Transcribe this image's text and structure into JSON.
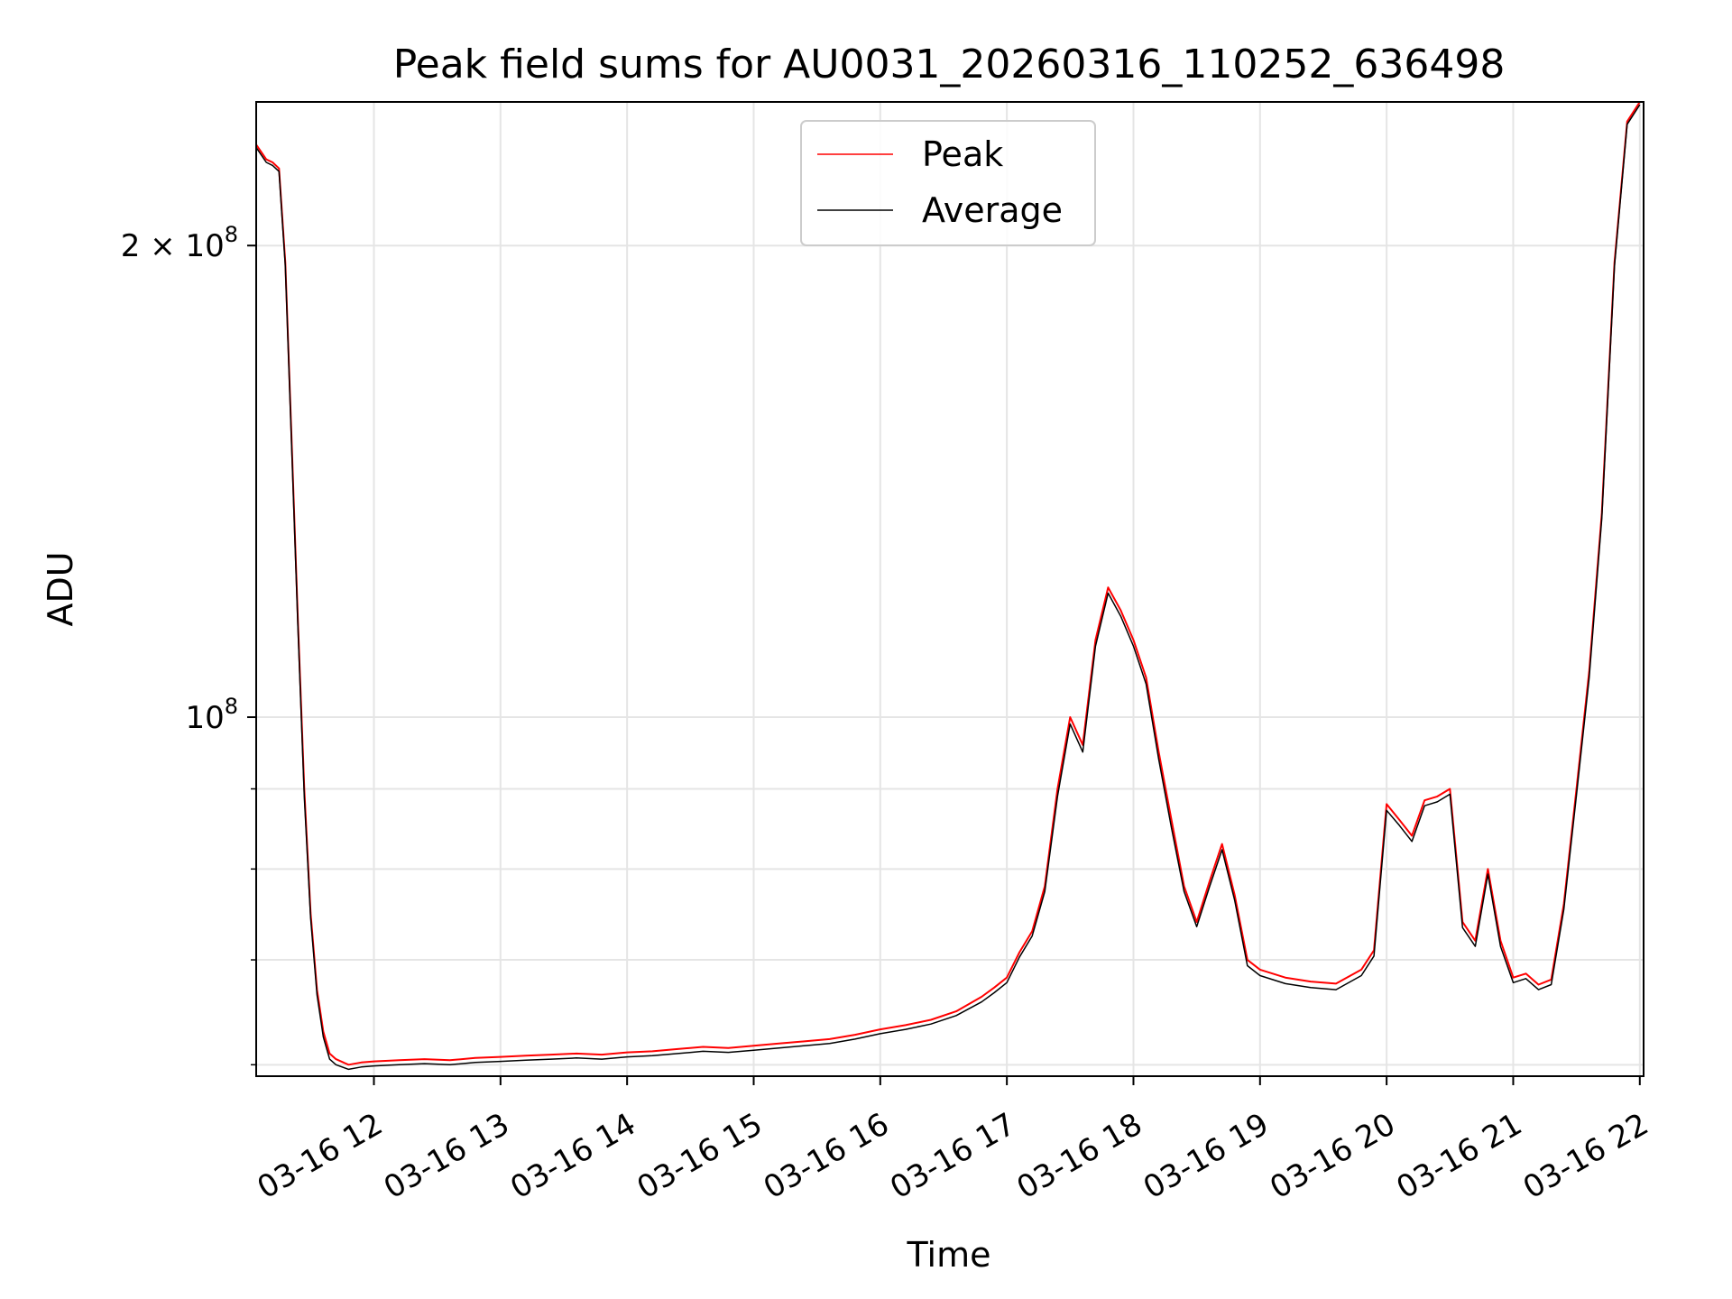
{
  "chart_data": {
    "type": "line",
    "title": "Peak field sums for AU0031_20260316_110252_636498",
    "xlabel": "Time",
    "ylabel": "ADU",
    "yscale": "log",
    "xlim": [
      11.07,
      22.03
    ],
    "ylim": [
      59000000,
      247000000
    ],
    "grid": true,
    "legend": {
      "position": "top-center",
      "entries": [
        "Peak",
        "Average"
      ]
    },
    "x_ticks": [
      {
        "value": 12,
        "label": "03-16 12"
      },
      {
        "value": 13,
        "label": "03-16 13"
      },
      {
        "value": 14,
        "label": "03-16 14"
      },
      {
        "value": 15,
        "label": "03-16 15"
      },
      {
        "value": 16,
        "label": "03-16 16"
      },
      {
        "value": 17,
        "label": "03-16 17"
      },
      {
        "value": 18,
        "label": "03-16 18"
      },
      {
        "value": 19,
        "label": "03-16 19"
      },
      {
        "value": 20,
        "label": "03-16 20"
      },
      {
        "value": 21,
        "label": "03-16 21"
      },
      {
        "value": 22,
        "label": "03-16 22"
      }
    ],
    "y_ticks_major": [
      {
        "value": 100000000,
        "base": "10",
        "exp": "8",
        "coef": ""
      },
      {
        "value": 200000000,
        "base": "10",
        "exp": "8",
        "coef": "2 × "
      }
    ],
    "y_ticks_minor": [
      60000000,
      70000000,
      80000000,
      90000000
    ],
    "series": [
      {
        "name": "Peak",
        "color": "#ff0000",
        "x": [
          11.07,
          11.15,
          11.2,
          11.25,
          11.3,
          11.35,
          11.4,
          11.45,
          11.5,
          11.55,
          11.6,
          11.65,
          11.7,
          11.8,
          11.9,
          12.0,
          12.2,
          12.4,
          12.6,
          12.8,
          13.0,
          13.2,
          13.4,
          13.6,
          13.8,
          14.0,
          14.2,
          14.4,
          14.6,
          14.8,
          15.0,
          15.2,
          15.4,
          15.6,
          15.8,
          16.0,
          16.2,
          16.4,
          16.6,
          16.8,
          16.9,
          17.0,
          17.1,
          17.2,
          17.3,
          17.4,
          17.5,
          17.6,
          17.7,
          17.8,
          17.9,
          18.0,
          18.1,
          18.2,
          18.3,
          18.4,
          18.5,
          18.6,
          18.7,
          18.8,
          18.9,
          19.0,
          19.2,
          19.4,
          19.6,
          19.8,
          19.9,
          20.0,
          20.1,
          20.2,
          20.3,
          20.4,
          20.5,
          20.6,
          20.7,
          20.8,
          20.9,
          21.0,
          21.1,
          21.2,
          21.3,
          21.4,
          21.5,
          21.6,
          21.7,
          21.8,
          21.9,
          22.0
        ],
        "y": [
          232000000,
          227000000,
          226000000,
          224000000,
          195000000,
          150000000,
          115000000,
          90000000,
          75000000,
          67000000,
          63000000,
          61000000,
          60500000,
          60000000,
          60200000,
          60300000,
          60400000,
          60500000,
          60400000,
          60600000,
          60700000,
          60800000,
          60900000,
          61000000,
          60900000,
          61100000,
          61200000,
          61400000,
          61600000,
          61500000,
          61700000,
          61900000,
          62100000,
          62300000,
          62700000,
          63200000,
          63600000,
          64100000,
          64900000,
          66300000,
          67200000,
          68200000,
          70800000,
          73000000,
          78000000,
          90000000,
          100000000,
          96000000,
          112000000,
          121000000,
          117000000,
          112000000,
          106000000,
          95000000,
          86000000,
          78000000,
          74000000,
          78500000,
          83000000,
          77000000,
          70000000,
          69000000,
          68200000,
          67800000,
          67600000,
          69000000,
          71000000,
          88000000,
          86000000,
          84000000,
          88500000,
          89000000,
          90000000,
          74000000,
          72000000,
          80000000,
          72000000,
          68200000,
          68600000,
          67500000,
          68000000,
          76000000,
          90000000,
          107000000,
          135000000,
          195000000,
          240000000,
          247000000
        ]
      },
      {
        "name": "Average",
        "color": "#000000",
        "x": [
          11.07,
          11.15,
          11.2,
          11.25,
          11.3,
          11.35,
          11.4,
          11.45,
          11.5,
          11.55,
          11.6,
          11.65,
          11.7,
          11.8,
          11.9,
          12.0,
          12.2,
          12.4,
          12.6,
          12.8,
          13.0,
          13.2,
          13.4,
          13.6,
          13.8,
          14.0,
          14.2,
          14.4,
          14.6,
          14.8,
          15.0,
          15.2,
          15.4,
          15.6,
          15.8,
          16.0,
          16.2,
          16.4,
          16.6,
          16.8,
          16.9,
          17.0,
          17.1,
          17.2,
          17.3,
          17.4,
          17.5,
          17.6,
          17.7,
          17.8,
          17.9,
          18.0,
          18.1,
          18.2,
          18.3,
          18.4,
          18.5,
          18.6,
          18.7,
          18.8,
          18.9,
          19.0,
          19.2,
          19.4,
          19.6,
          19.8,
          19.9,
          20.0,
          20.1,
          20.2,
          20.3,
          20.4,
          20.5,
          20.6,
          20.7,
          20.8,
          20.9,
          21.0,
          21.1,
          21.2,
          21.3,
          21.4,
          21.5,
          21.6,
          21.7,
          21.8,
          21.9,
          22.0
        ],
        "y": [
          231000000,
          226000000,
          225000000,
          223000000,
          194000000,
          149000000,
          114000000,
          89000000,
          74500000,
          66500000,
          62500000,
          60500000,
          60000000,
          59600000,
          59800000,
          59900000,
          60000000,
          60100000,
          60000000,
          60200000,
          60300000,
          60400000,
          60500000,
          60600000,
          60500000,
          60700000,
          60800000,
          61000000,
          61200000,
          61100000,
          61300000,
          61500000,
          61700000,
          61900000,
          62300000,
          62800000,
          63200000,
          63700000,
          64500000,
          65800000,
          66700000,
          67700000,
          70300000,
          72500000,
          77400000,
          89000000,
          99000000,
          95000000,
          111000000,
          120000000,
          116000000,
          111000000,
          105000000,
          94000000,
          85000000,
          77400000,
          73500000,
          77900000,
          82300000,
          76400000,
          69400000,
          68400000,
          67600000,
          67200000,
          67000000,
          68400000,
          70400000,
          87200000,
          85300000,
          83300000,
          87800000,
          88300000,
          89300000,
          73400000,
          71400000,
          79400000,
          71400000,
          67700000,
          68100000,
          67000000,
          67500000,
          75400000,
          89200000,
          106000000,
          134000000,
          194000000,
          239000000,
          246000000
        ]
      }
    ]
  }
}
